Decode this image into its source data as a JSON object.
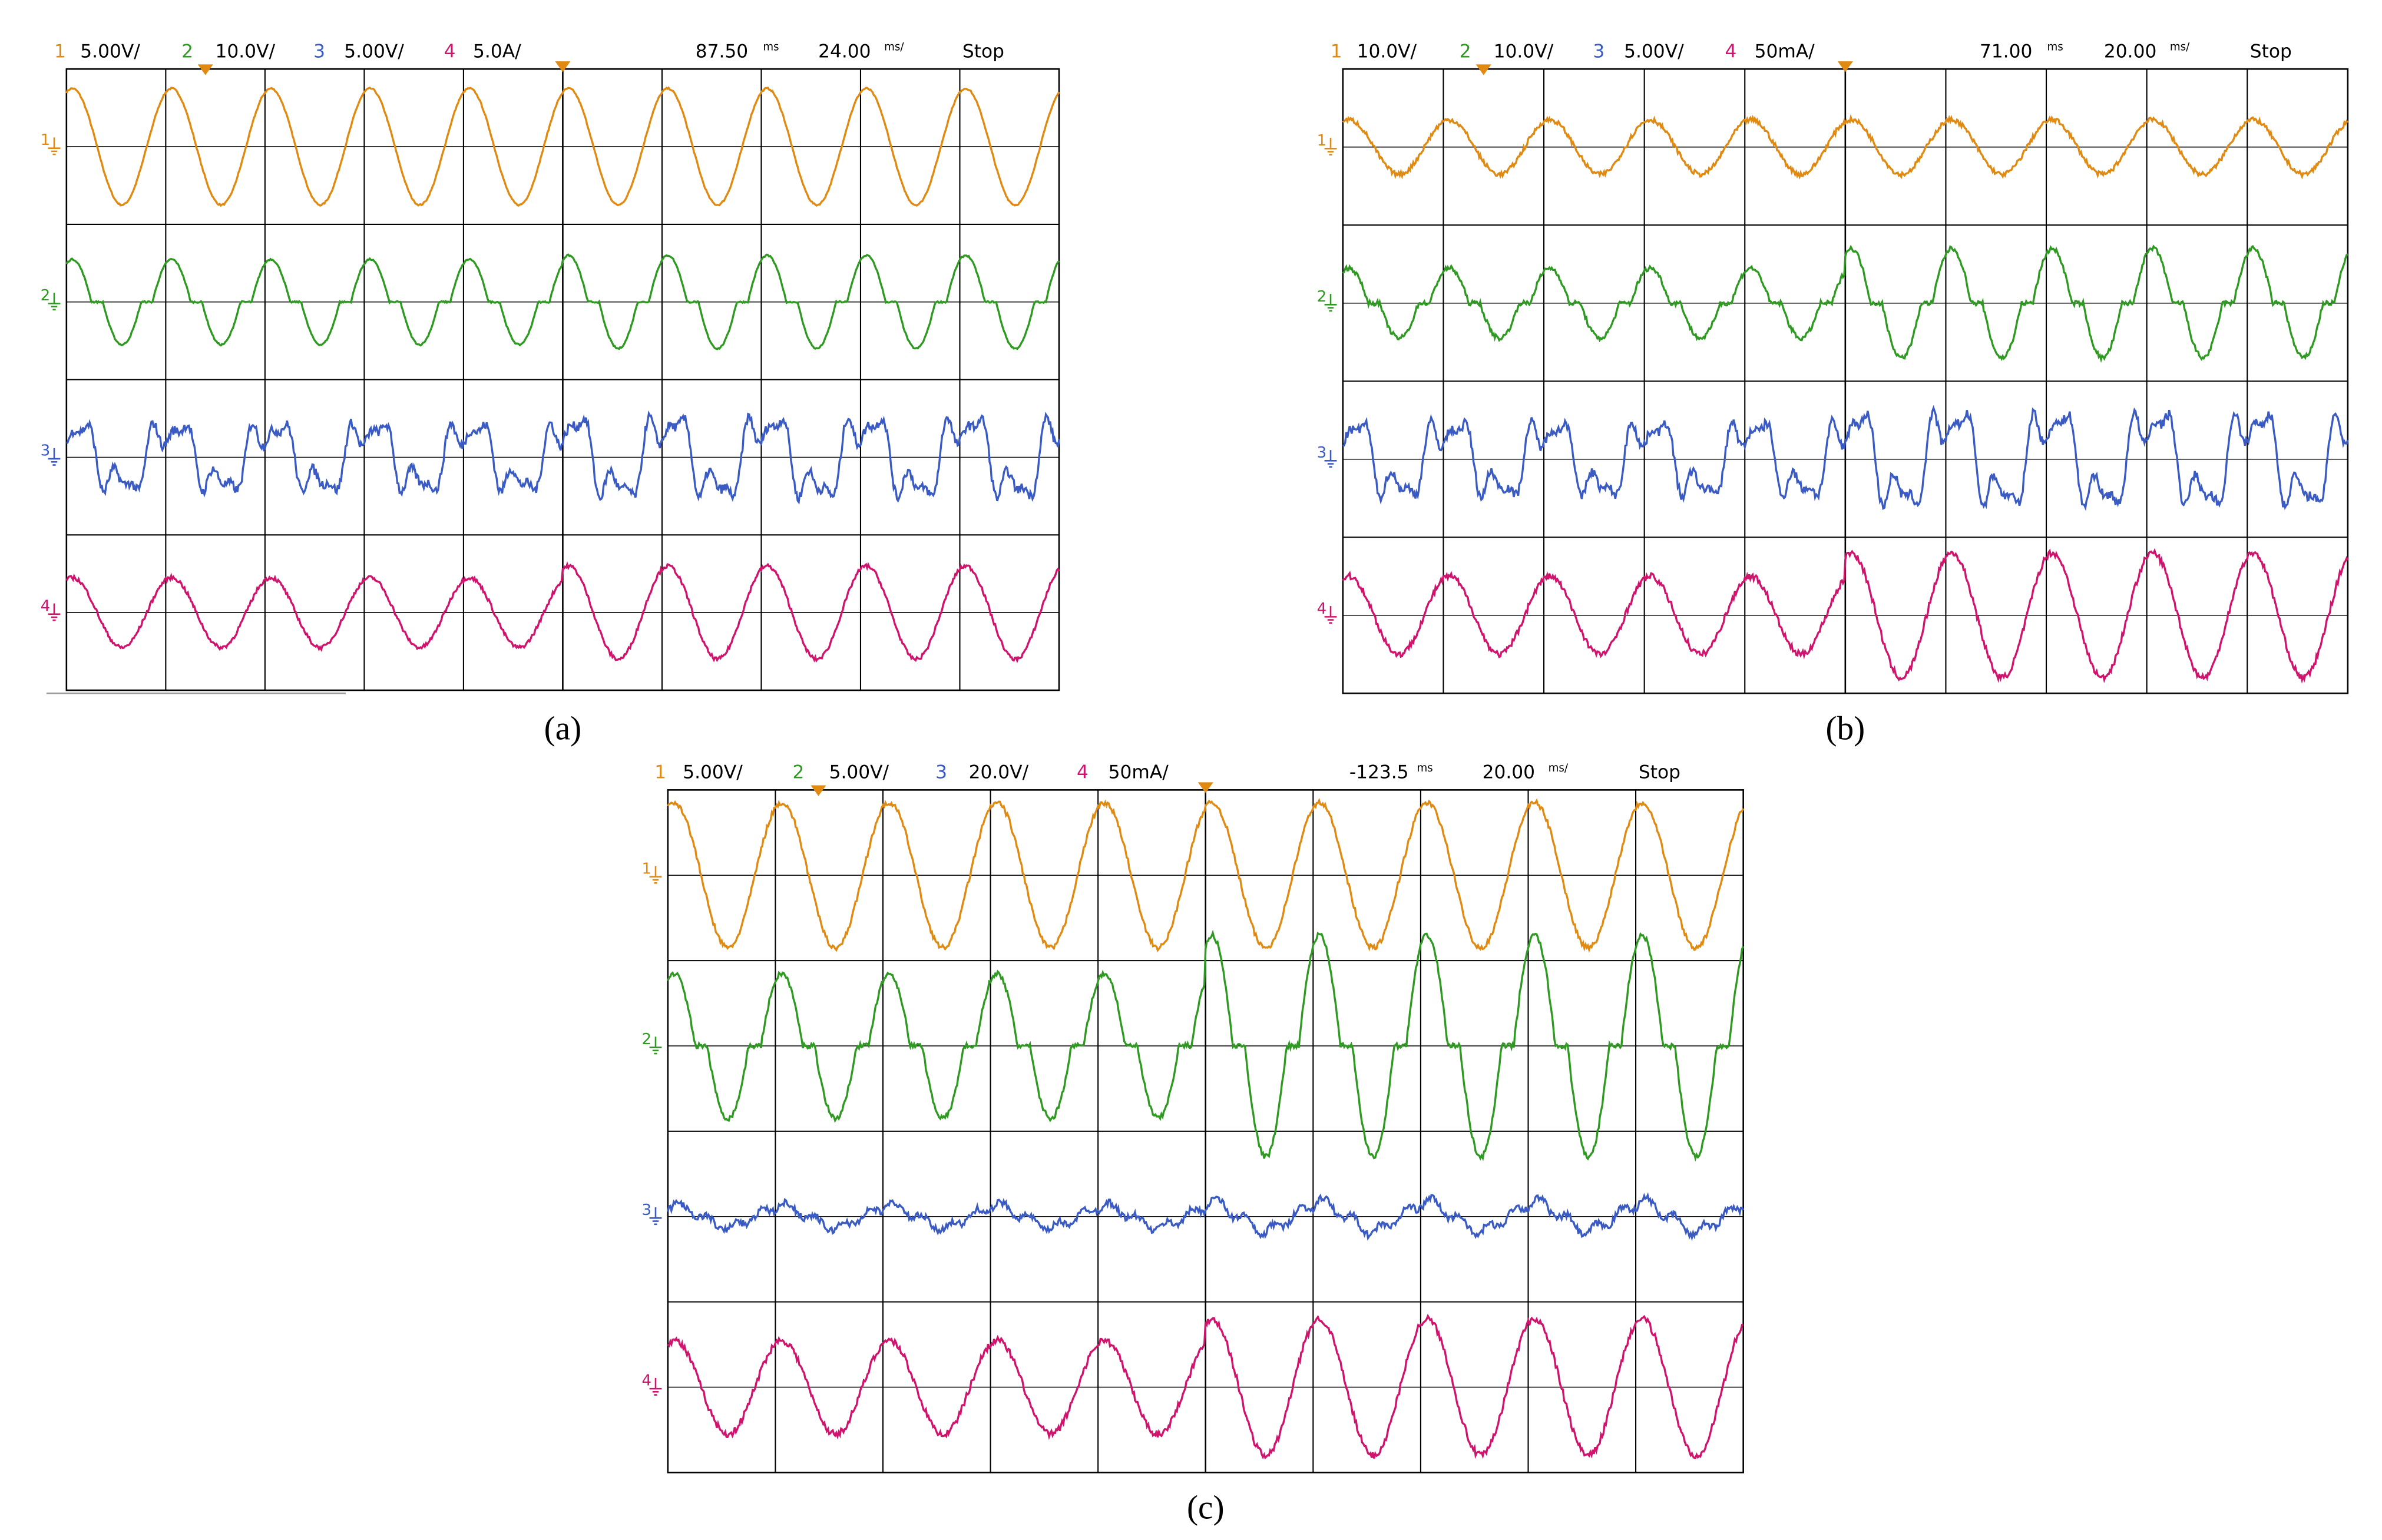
{
  "panels": [
    {
      "header": {
        "channels": [
          {
            "number": "1",
            "scale": "5.00V/"
          },
          {
            "number": "2",
            "scale": "10.0V/"
          },
          {
            "number": "3",
            "scale": "5.00V/"
          },
          {
            "number": "4",
            "scale": "5.0A/"
          }
        ],
        "position": "87.50",
        "position_unit": "ms",
        "timebase": "24.00",
        "timebase_unit": "ms/",
        "status": "Stop"
      },
      "markers": [
        "1",
        "2",
        "3",
        "4"
      ],
      "caption": "(a)"
    },
    {
      "header": {
        "channels": [
          {
            "number": "1",
            "scale": "10.0V/"
          },
          {
            "number": "2",
            "scale": "10.0V/"
          },
          {
            "number": "3",
            "scale": "5.00V/"
          },
          {
            "number": "4",
            "scale": "50mA/"
          }
        ],
        "position": "71.00",
        "position_unit": "ms",
        "timebase": "20.00",
        "timebase_unit": "ms/",
        "status": "Stop"
      },
      "markers": [
        "1",
        "2",
        "3",
        "4"
      ],
      "caption": "(b)"
    },
    {
      "header": {
        "channels": [
          {
            "number": "1",
            "scale": "5.00V/"
          },
          {
            "number": "2",
            "scale": "5.00V/"
          },
          {
            "number": "3",
            "scale": "20.0V/"
          },
          {
            "number": "4",
            "scale": "50mA/"
          }
        ],
        "position": "-123.5",
        "position_unit": "ms",
        "timebase": "20.00",
        "timebase_unit": "ms/",
        "status": "Stop"
      },
      "markers": [
        "1",
        "2",
        "3",
        "4"
      ],
      "caption": "(c)"
    }
  ]
}
